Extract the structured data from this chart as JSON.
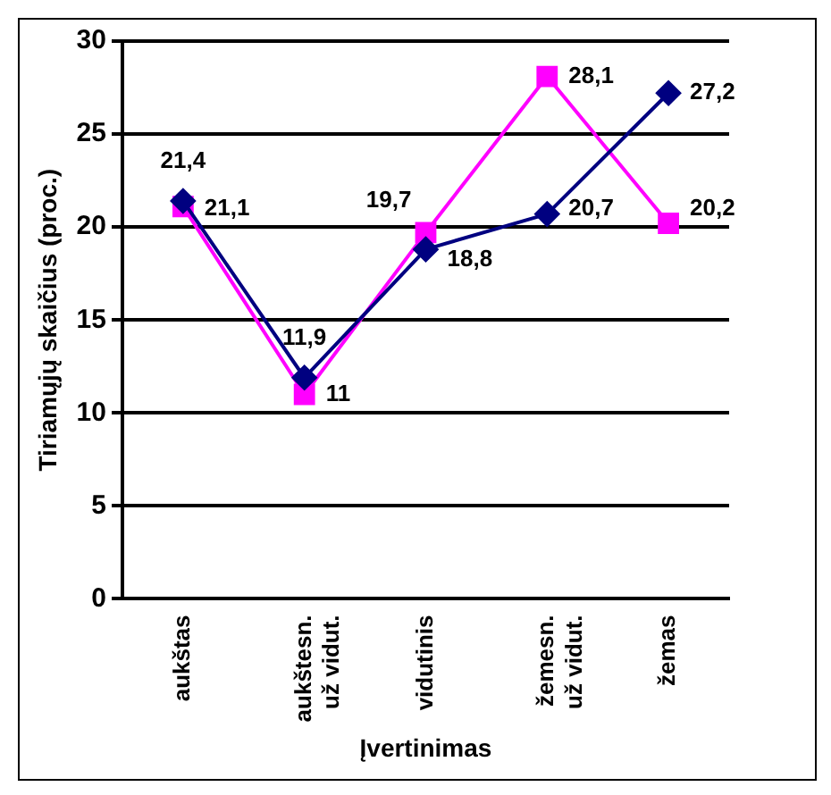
{
  "chart_data": {
    "type": "line",
    "ylabel": "Tiriamųjų skaičius (proc.)",
    "xlabel": "Įvertinimas",
    "categories": [
      "aukštas",
      "aukštesn.\nuž vidut.",
      "vidutinis",
      "žemesn.\nuž vidut.",
      "žemas"
    ],
    "series": [
      {
        "color": "#000080",
        "marker": "diamond",
        "values": [
          21.4,
          11.9,
          18.8,
          20.7,
          27.2
        ],
        "value_labels": [
          "21,4",
          "11,9",
          "18,8",
          "20,7",
          "27,2"
        ]
      },
      {
        "color": "#ff00ff",
        "marker": "square",
        "values": [
          21.1,
          11,
          19.7,
          28.1,
          20.2
        ],
        "value_labels": [
          "21,1",
          "11",
          "19,7",
          "28,1",
          "20,2"
        ]
      }
    ],
    "ylim": [
      0,
      30
    ],
    "yticks": [
      0,
      5,
      10,
      15,
      20,
      25,
      30
    ],
    "grid": "y",
    "legend": false
  }
}
